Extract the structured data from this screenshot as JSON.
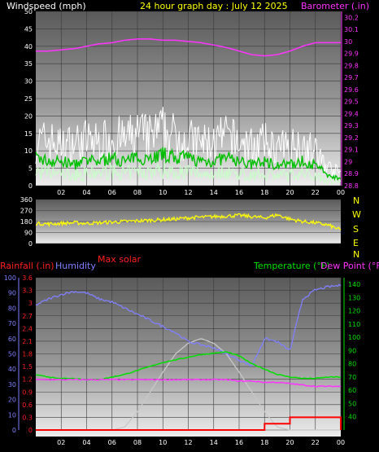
{
  "header": {
    "left_title": "Windspeed (mph)",
    "center_title": "24 hour graph day : July 12 2025",
    "right_title": "Barometer (.in)"
  },
  "compass": [
    "N",
    "W",
    "S",
    "E",
    "N"
  ],
  "lower_header": {
    "rain": "Rainfall (.in)",
    "humidity": "Humidity",
    "max_solar": "Max solar",
    "temperature": "Temperature (°F)",
    "dew": "Dew Point (°F)"
  },
  "colors": {
    "wind": "#ffffff",
    "wind_avg": "#00c000",
    "wind_light": "#c8ffc8",
    "baro": "#ff33ff",
    "dir": "#ffff00",
    "rain": "#ff0000",
    "humidity": "#8080ff",
    "temperature": "#00e000",
    "dew": "#ff33ff",
    "solar": "#c8c8c8",
    "grid_bg_top": "#555555",
    "grid_bg_bottom": "#f0f0f0"
  },
  "chart_data": [
    {
      "type": "line",
      "title": "24 hour graph day : July 12 2025",
      "x_ticks": [
        "02",
        "04",
        "06",
        "08",
        "10",
        "12",
        "14",
        "16",
        "18",
        "20",
        "22",
        "00"
      ],
      "x_range_hours": [
        0,
        24
      ],
      "series": [
        {
          "name": "Windspeed (mph)",
          "axis": "left",
          "ylim": [
            0,
            50
          ],
          "y_ticks": [
            "0",
            "5",
            "10",
            "15",
            "20",
            "25",
            "30",
            "35",
            "40",
            "45",
            "50"
          ],
          "hourly_gust": [
            14,
            15,
            13,
            14,
            15,
            14,
            16,
            15,
            17,
            16,
            18,
            16,
            15,
            14,
            14,
            16,
            14,
            13,
            14,
            12,
            13,
            14,
            11,
            6,
            4
          ],
          "hourly_avg": [
            8,
            7,
            7,
            6,
            7,
            7,
            8,
            7,
            8,
            8,
            9,
            8,
            8,
            7,
            7,
            8,
            7,
            6,
            7,
            6,
            6,
            7,
            6,
            3,
            2
          ]
        },
        {
          "name": "Barometer (.in)",
          "axis": "right",
          "ylim": [
            28.8,
            30.25
          ],
          "y_ticks": [
            "28.8",
            "28.9",
            "29",
            "29.1",
            "29.2",
            "29.3",
            "29.4",
            "29.5",
            "29.6",
            "29.7",
            "29.8",
            "29.9",
            "30",
            "30.1",
            "30.2"
          ],
          "hourly": [
            29.92,
            29.92,
            29.93,
            29.94,
            29.96,
            29.98,
            29.99,
            30.01,
            30.02,
            30.02,
            30.01,
            30.01,
            30.0,
            29.99,
            29.97,
            29.95,
            29.92,
            29.89,
            29.88,
            29.89,
            29.92,
            29.96,
            29.99,
            29.99,
            29.99
          ]
        }
      ]
    },
    {
      "type": "line",
      "title": "",
      "ylim": [
        0,
        360
      ],
      "y_ticks": [
        "0",
        "90",
        "180",
        "270",
        "360"
      ],
      "series": [
        {
          "name": "Wind direction",
          "hourly": [
            165,
            160,
            165,
            170,
            165,
            170,
            175,
            180,
            185,
            190,
            195,
            200,
            210,
            215,
            220,
            225,
            230,
            220,
            210,
            235,
            200,
            180,
            170,
            150,
            110
          ]
        }
      ]
    },
    {
      "type": "line",
      "title": "",
      "series": [
        {
          "name": "Rainfall (.in)",
          "axis": "left-outer",
          "ylim": [
            0,
            3.6
          ],
          "y_ticks": [
            "0",
            "0.3",
            "0.6",
            "0.9",
            "1.2",
            "1.5",
            "1.8",
            "2.1",
            "2.4",
            "2.7",
            "3",
            "3.3",
            "3.6"
          ],
          "hourly": [
            0,
            0,
            0,
            0,
            0,
            0,
            0,
            0,
            0,
            0,
            0,
            0,
            0,
            0,
            0,
            0,
            0,
            0,
            0.15,
            0.15,
            0.3,
            0.3,
            0.3,
            0.3,
            0
          ]
        },
        {
          "name": "Humidity",
          "axis": "left-inner",
          "ylim": [
            0,
            100
          ],
          "y_ticks": [
            "0",
            "10",
            "20",
            "30",
            "40",
            "50",
            "60",
            "70",
            "80",
            "90",
            "100"
          ],
          "hourly": [
            82,
            86,
            89,
            91,
            90,
            86,
            84,
            80,
            76,
            72,
            68,
            64,
            58,
            56,
            54,
            50,
            46,
            42,
            60,
            58,
            52,
            86,
            92,
            94,
            95
          ]
        },
        {
          "name": "Temperature (°F)",
          "axis": "right",
          "ylim": [
            30,
            145
          ],
          "y_ticks": [
            "40",
            "50",
            "60",
            "70",
            "80",
            "90",
            "100",
            "110",
            "120",
            "130",
            "140"
          ],
          "hourly": [
            72,
            70,
            69,
            69,
            68,
            68,
            70,
            72,
            75,
            78,
            81,
            83,
            85,
            87,
            88,
            89,
            86,
            80,
            76,
            72,
            70,
            69,
            69,
            70,
            70
          ]
        },
        {
          "name": "Dew Point (°F)",
          "axis": "right",
          "ylim": [
            30,
            145
          ],
          "hourly": [
            68,
            68,
            68,
            68,
            68,
            68,
            68,
            68,
            68,
            68,
            68,
            68,
            68,
            68,
            68,
            68,
            67,
            67,
            66,
            66,
            65,
            64,
            63,
            63,
            63
          ]
        },
        {
          "name": "Max solar",
          "hourly": [
            0,
            0,
            0,
            0,
            0,
            0,
            0,
            2,
            12,
            25,
            38,
            50,
            57,
            60,
            57,
            50,
            38,
            25,
            12,
            2,
            0,
            0,
            0,
            0,
            0
          ]
        }
      ]
    }
  ]
}
